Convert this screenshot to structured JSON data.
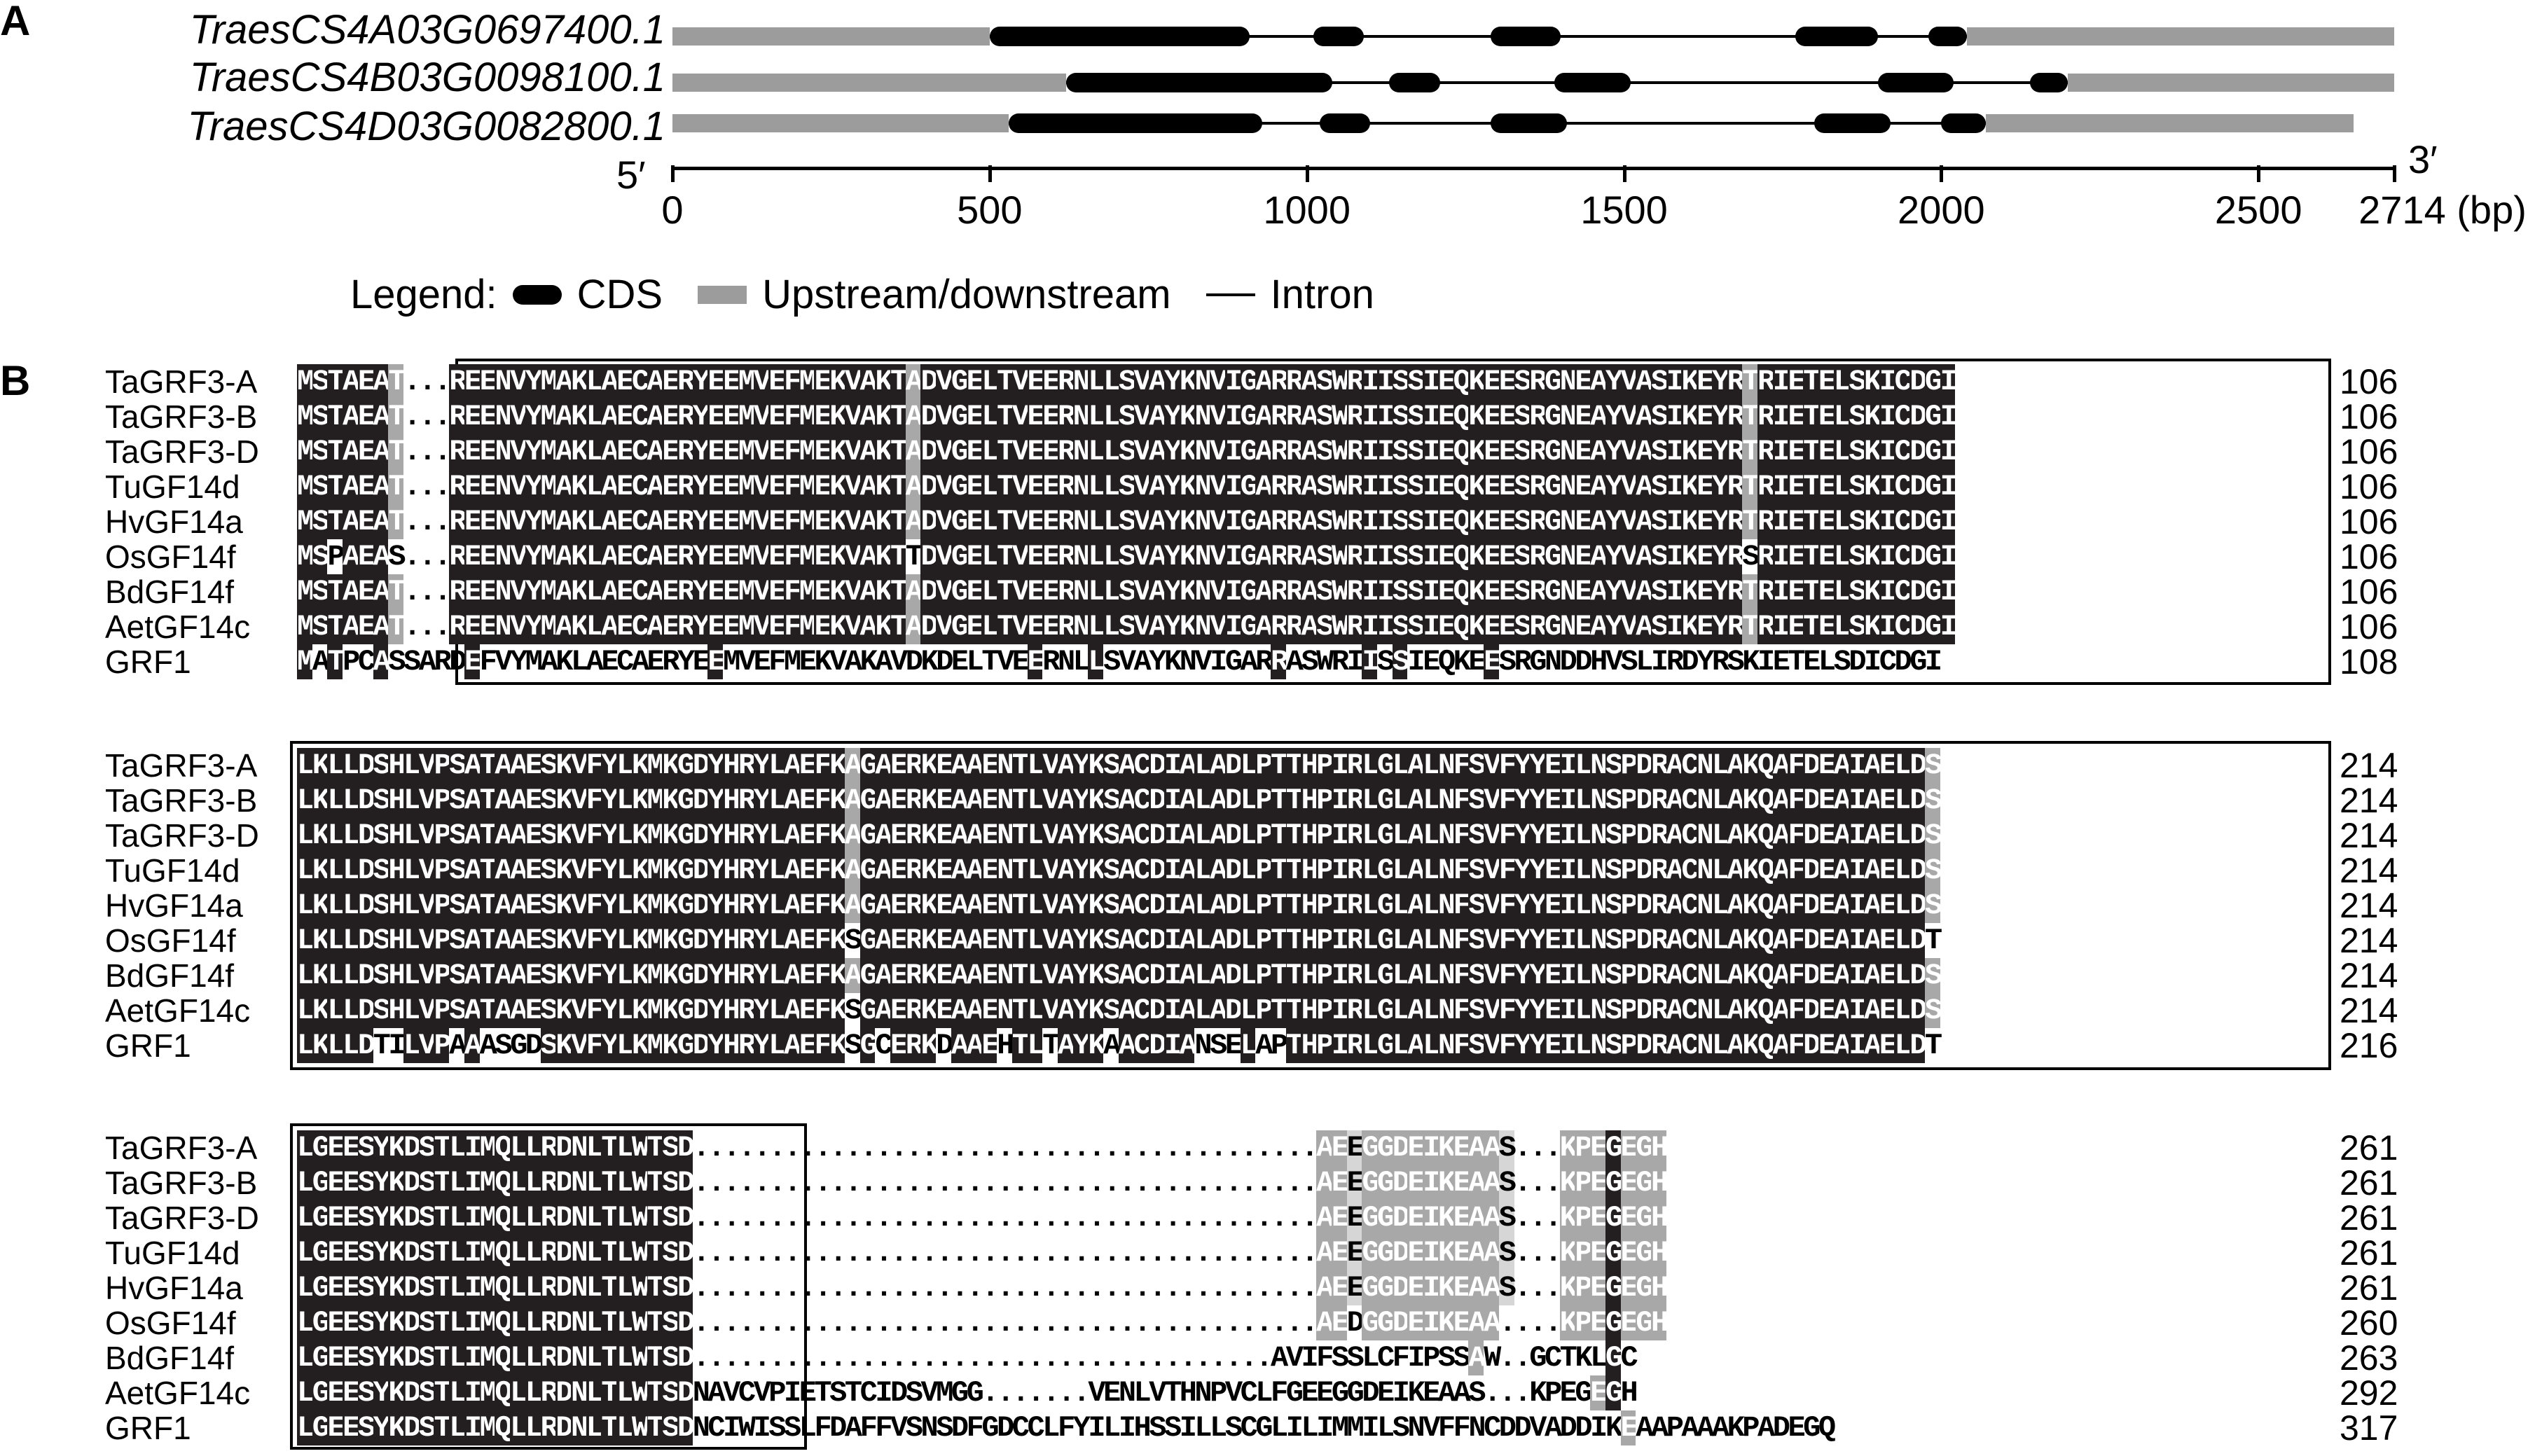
{
  "panel_a": {
    "letter": "A",
    "genes": [
      {
        "name": "TraesCS4A03G0697400.1",
        "utr5": [
          0,
          500
        ],
        "cds": [
          [
            500,
            910
          ],
          [
            1010,
            1090
          ],
          [
            1290,
            1400
          ],
          [
            1770,
            1900
          ],
          [
            1980,
            2040
          ]
        ],
        "utr3": [
          2040,
          2714
        ]
      },
      {
        "name": "TraesCS4B03G0098100.1",
        "utr5": [
          0,
          620
        ],
        "cds": [
          [
            620,
            1040
          ],
          [
            1130,
            1210
          ],
          [
            1390,
            1510
          ],
          [
            1900,
            2020
          ],
          [
            2140,
            2200
          ]
        ],
        "utr3": [
          2200,
          2714
        ]
      },
      {
        "name": "TraesCS4D03G0082800.1",
        "utr5": [
          0,
          530
        ],
        "cds": [
          [
            530,
            930
          ],
          [
            1020,
            1100
          ],
          [
            1290,
            1410
          ],
          [
            1800,
            1920
          ],
          [
            2000,
            2070
          ]
        ],
        "utr3": [
          2070,
          2650
        ]
      }
    ],
    "axis": {
      "ticks": [
        0,
        500,
        1000,
        1500,
        2000,
        2500
      ],
      "end_label": "2714 (bp)",
      "max": 2714,
      "five_prime": "5′",
      "three_prime": "3′"
    },
    "legend": {
      "title": "Legend:",
      "cds": "CDS",
      "utr": "Upstream/downstream",
      "intron": "Intron"
    }
  },
  "panel_b": {
    "letter": "B",
    "species": [
      "TaGRF3-A",
      "TaGRF3-B",
      "TaGRF3-D",
      "TuGF14d",
      "HvGF14a",
      "OsGF14f",
      "BdGF14f",
      "AetGF14c",
      "GRF1"
    ],
    "blocks": [
      {
        "sequences": [
          "MSTAEAT...REENVYMAKLAECAERYEEMVEFMEKVAKTADVGELTVEERNLLSVAYKNVIGARRASWRIISSIEQKEESRGNEAYVASIKEYRTRIETELSKICDGI",
          "MSTAEAT...REENVYMAKLAECAERYEEMVEFMEKVAKTADVGELTVEERNLLSVAYKNVIGARRASWRIISSIEQKEESRGNEAYVASIKEYRTRIETELSKICDGI",
          "MSTAEAT...REENVYMAKLAECAERYEEMVEFMEKVAKTADVGELTVEERNLLSVAYKNVIGARRASWRIISSIEQKEESRGNEAYVASIKEYRTRIETELSKICDGI",
          "MSTAEAT...REENVYMAKLAECAERYEEMVEFMEKVAKTADVGELTVEERNLLSVAYKNVIGARRASWRIISSIEQKEESRGNEAYVASIKEYRTRIETELSKICDGI",
          "MSTAEAT...REENVYMAKLAECAERYEEMVEFMEKVAKTADVGELTVEERNLLSVAYKNVIGARRASWRIISSIEQKEESRGNEAYVASIKEYRTRIETELSKICDGI",
          "MSPAEAS...REENVYMAKLAECAERYEEMVEFMEKVAKTTDVGELTVEERNLLSVAYKNVIGARRASWRIISSIEQKEESRGNEAYVASIKEYRSRIETELSKICDGI",
          "MSTAEAT...REENVYMAKLAECAERYEEMVEFMEKVAKTADVGELTVEERNLLSVAYKNVIGARRASWRIISSIEQKEESRGNEAYVASIKEYRTRIETELSKICDGI",
          "MSTAEAT...REENVYMAKLAECAERYEEMVEFMEKVAKTADVGELTVEERNLLSVAYKNVIGARRASWRIISSIEQKEESRGNEAYVASIKEYRTRIETELSKICDGI",
          "MATPCASSARDEFVYMAKLAECAERYEEMVEFMEKVAKAVDKDELTVEERNLLSVAYKNVIGARRASWRIISSIEQKEESRGNDDHVSLIRDYRSKIETELSDICDGI"
        ],
        "numbers": [
          "106",
          "106",
          "106",
          "106",
          "106",
          "106",
          "106",
          "106",
          "108"
        ]
      },
      {
        "sequences": [
          "LKLLDSHLVPSATAAESKVFYLKMKGDYHRYLAEFKAGAERKEAAENTLVAYKSACDIALADLPTTHPIRLGLALNFSVFYYEILNSPDRACNLAKQAFDEAIAELDS",
          "LKLLDSHLVPSATAAESKVFYLKMKGDYHRYLAEFKAGAERKEAAENTLVAYKSACDIALADLPTTHPIRLGLALNFSVFYYEILNSPDRACNLAKQAFDEAIAELDS",
          "LKLLDSHLVPSATAAESKVFYLKMKGDYHRYLAEFKAGAERKEAAENTLVAYKSACDIALADLPTTHPIRLGLALNFSVFYYEILNSPDRACNLAKQAFDEAIAELDS",
          "LKLLDSHLVPSATAAESKVFYLKMKGDYHRYLAEFKAGAERKEAAENTLVAYKSACDIALADLPTTHPIRLGLALNFSVFYYEILNSPDRACNLAKQAFDEAIAELDS",
          "LKLLDSHLVPSATAAESKVFYLKMKGDYHRYLAEFKAGAERKEAAENTLVAYKSACDIALADLPTTHPIRLGLALNFSVFYYEILNSPDRACNLAKQAFDEAIAELDS",
          "LKLLDSHLVPSATAAESKVFYLKMKGDYHRYLAEFKSGAERKEAAENTLVAYKSACDIALADLPTTHPIRLGLALNFSVFYYEILNSPDRACNLAKQAFDEAIAELDT",
          "LKLLDSHLVPSATAAESKVFYLKMKGDYHRYLAEFKAGAERKEAAENTLVAYKSACDIALADLPTTHPIRLGLALNFSVFYYEILNSPDRACNLAKQAFDEAIAELDS",
          "LKLLDSHLVPSATAAESKVFYLKMKGDYHRYLAEFKSGAERKEAAENTLVAYKSACDIALADLPTTHPIRLGLALNFSVFYYEILNSPDRACNLAKQAFDEAIAELDS",
          "LKLLDTILVPAAASGDSKVFYLKMKGDYHRYLAEFKSGCERKDAAEHTLTAYKAACDIANSELAPTHPIRLGLALNFSVFYYEILNSPDRACNLAKQAFDEAIAELDT"
        ],
        "numbers": [
          "214",
          "214",
          "214",
          "214",
          "214",
          "214",
          "214",
          "214",
          "216"
        ]
      },
      {
        "sequences": [
          "LGEESYKDSTLIMQLLRDNLTLWTSD.........................................AEEGGDEIKEAAS...KPEGEGH",
          "LGEESYKDSTLIMQLLRDNLTLWTSD.........................................AEEGGDEIKEAAS...KPEGEGH",
          "LGEESYKDSTLIMQLLRDNLTLWTSD.........................................AEEGGDEIKEAAS...KPEGEGH",
          "LGEESYKDSTLIMQLLRDNLTLWTSD.........................................AEEGGDEIKEAAS...KPEGEGH",
          "LGEESYKDSTLIMQLLRDNLTLWTSD.........................................AEEGGDEIKEAAS...KPEGEGH",
          "LGEESYKDSTLIMQLLRDNLTLWTSD.........................................AEDGGDEIKEAA....KPEGEGH",
          "LGEESYKDSTLIMQLLRDNLTLWTSD......................................AVIFSSLCFIPSSAW..GCTKLGC",
          "LGEESYKDSTLIMQLLRDNLTLWTSDNAVCVPIETSTCIDSVMGG.......VENLVTHNPVCLFGEEGGDEIKEAAS...KPEGEGH",
          "LGEESYKDSTLIMQLLRDNLTLWTSDNCIWISSLFDAFFVSNSDFGDCCLFYILIHSSILLSCGLILIMMILSNVFFNCDDVADDIKEAAPAAAKPADEGQ"
        ],
        "numbers": [
          "261",
          "261",
          "261",
          "261",
          "261",
          "260",
          "263",
          "292",
          "317"
        ]
      }
    ],
    "colors": {
      "identical": "#231f20",
      "similar": "#a8a8a8",
      "weak": "#d6d6d6"
    }
  }
}
